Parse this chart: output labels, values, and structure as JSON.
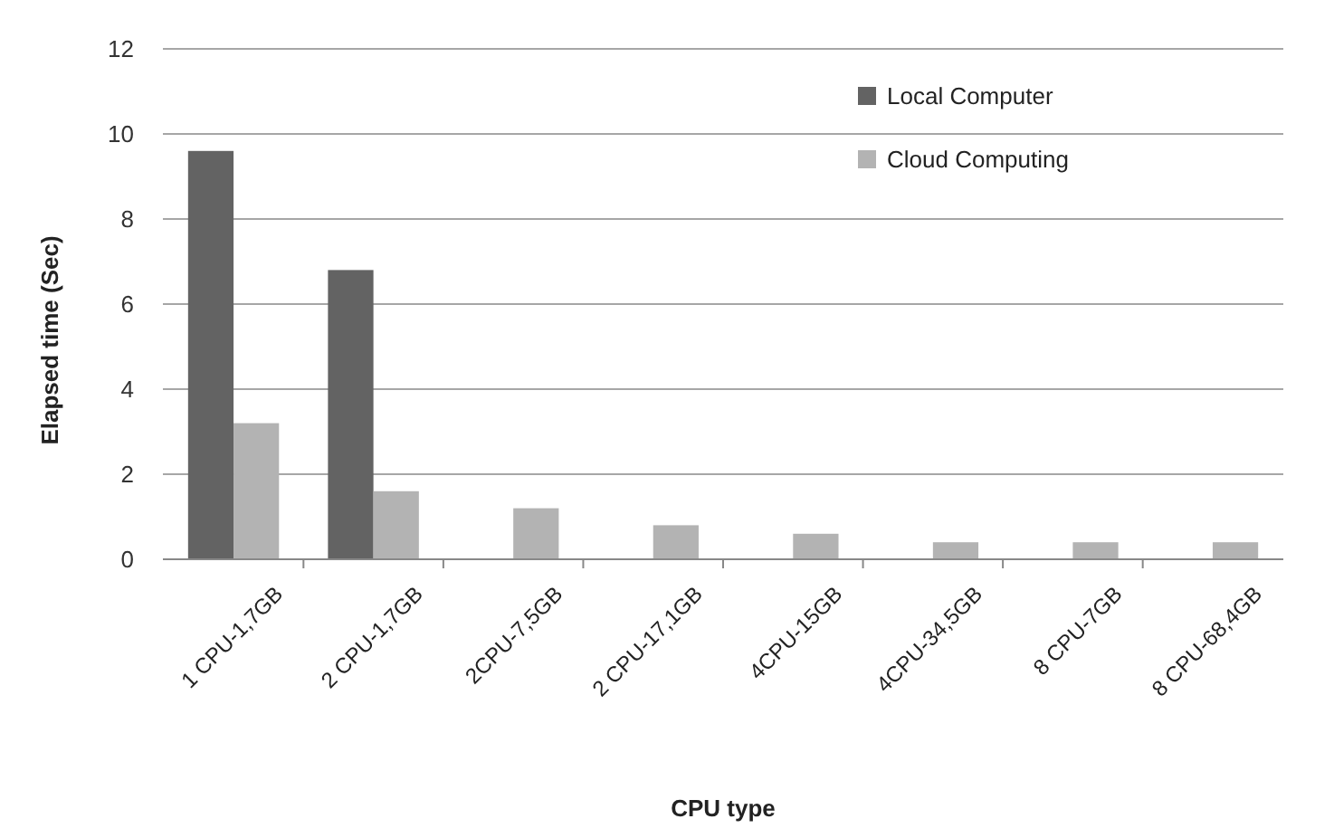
{
  "chart_data": {
    "type": "bar",
    "xlabel": "CPU type",
    "ylabel": "Elapsed time (Sec)",
    "categories": [
      "1 CPU-1,7GB",
      "2 CPU-1,7GB",
      "2CPU-7,5GB",
      "2 CPU-17,1GB",
      "4CPU-15GB",
      "4CPU-34,5GB",
      "8 CPU-7GB",
      "8 CPU-68,4GB"
    ],
    "series": [
      {
        "name": "Local Computer",
        "color": "#636363",
        "values": [
          9.6,
          6.8,
          null,
          null,
          null,
          null,
          null,
          null
        ]
      },
      {
        "name": "Cloud Computing",
        "color": "#b3b3b3",
        "values": [
          3.2,
          1.6,
          1.2,
          0.8,
          0.6,
          0.4,
          0.4,
          0.4
        ]
      }
    ],
    "ylim": [
      0,
      12
    ],
    "yticks": [
      0,
      2,
      4,
      6,
      8,
      10,
      12
    ],
    "grid": "y",
    "legend": "top right"
  }
}
